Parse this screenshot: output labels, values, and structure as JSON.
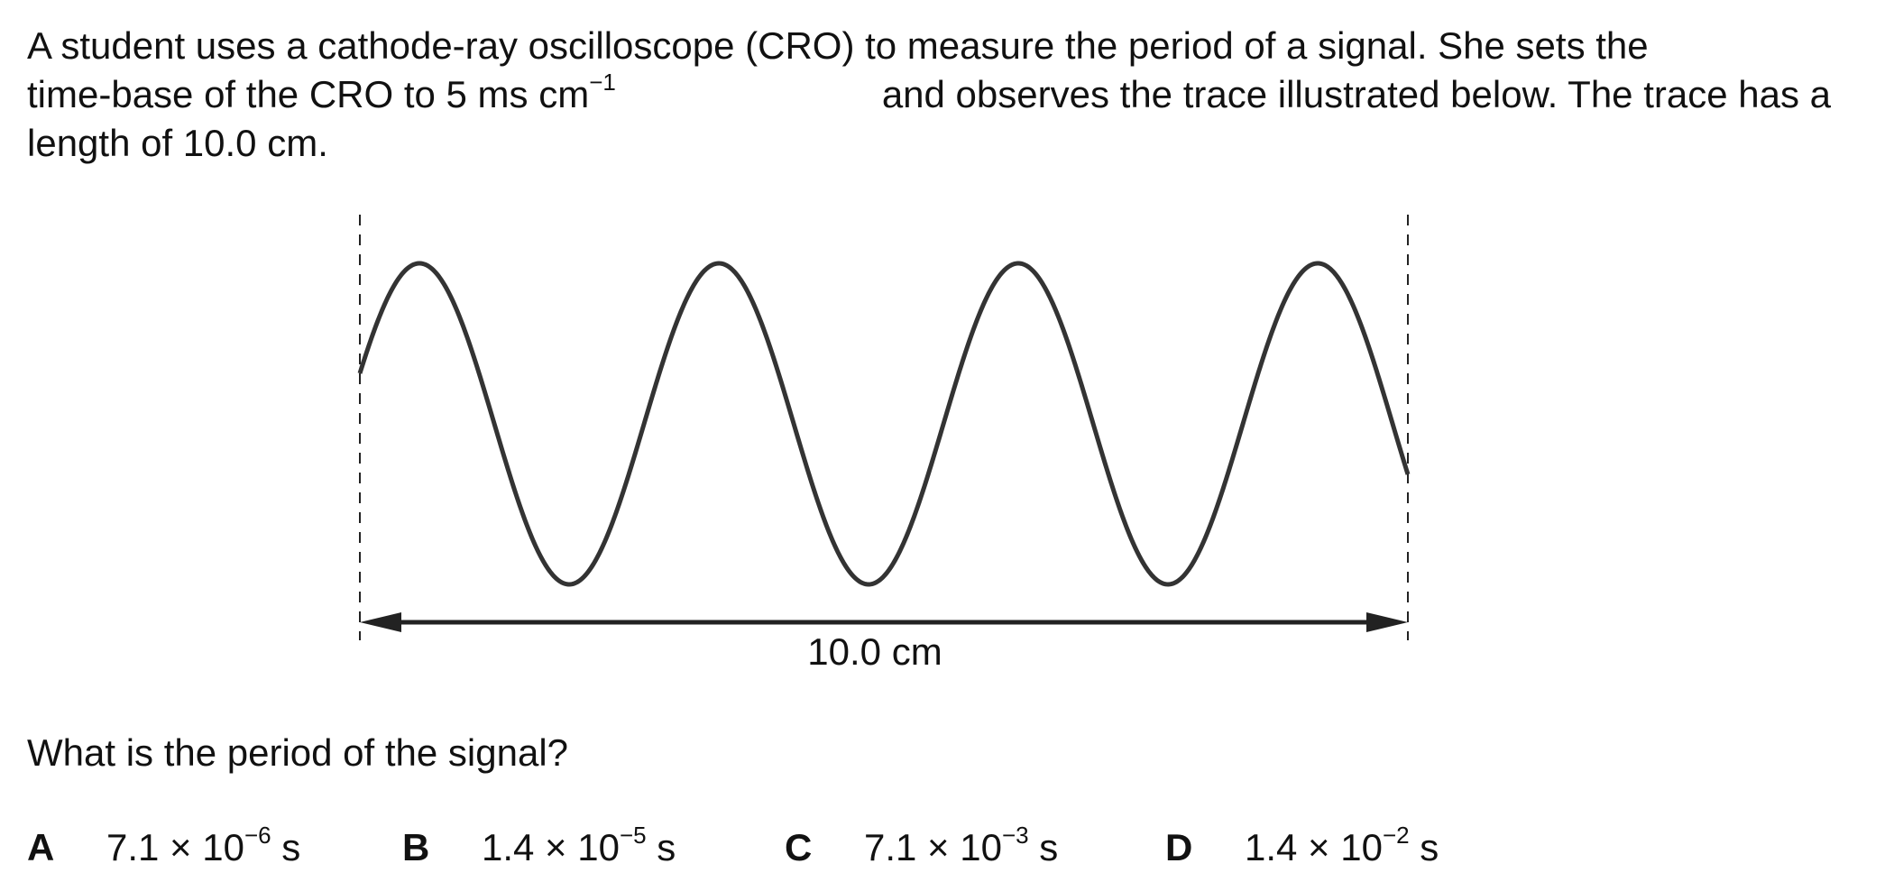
{
  "stem": {
    "line1": "A student uses a cathode-ray oscilloscope (CRO) to measure the period of a signal. She sets the",
    "line2_words": [
      "time-base",
      "of",
      "the",
      "CRO",
      "to",
      "5 ms cm",
      "and",
      "observes",
      "the",
      "trace",
      "has",
      "a"
    ],
    "line2_a": "time-base of the CRO to 5 ms cm",
    "line2_sup": "−1",
    "line2_b": "and observes the trace illustrated below. The trace has a",
    "line3": "length of 10.0 cm."
  },
  "figure": {
    "length_label": "10.0 cm",
    "cycles": 3.5,
    "stroke_color": "#333333"
  },
  "question": "What is the period of the signal?",
  "options": [
    {
      "letter": "A",
      "mantissa": "7.1 × 10",
      "exponent": "−6",
      "unit": " s"
    },
    {
      "letter": "B",
      "mantissa": "1.4 × 10",
      "exponent": "−5",
      "unit": " s"
    },
    {
      "letter": "C",
      "mantissa": "7.1 × 10",
      "exponent": "−3",
      "unit": " s"
    },
    {
      "letter": "D",
      "mantissa": "1.4 × 10",
      "exponent": "−2",
      "unit": " s"
    }
  ]
}
